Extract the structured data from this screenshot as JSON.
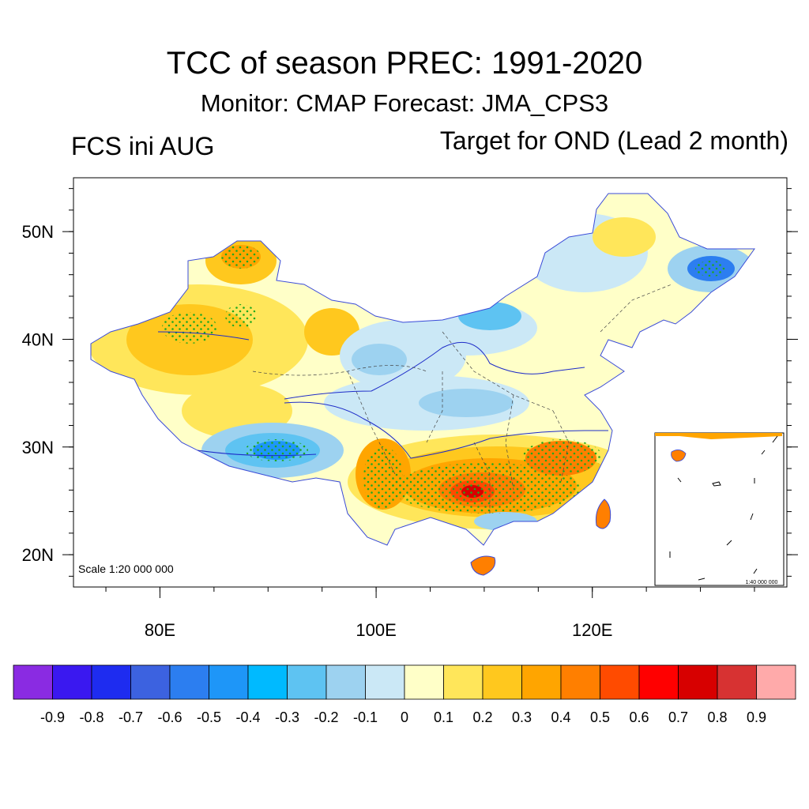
{
  "title": "TCC of season PREC: 1991-2020",
  "subtitle": "Monitor: CMAP   Forecast: JMA_CPS3",
  "left_label": "FCS ini AUG",
  "right_label": "Target for OND (Lead 2 month)",
  "map": {
    "lon_ticks": [
      {
        "value": 80,
        "label": "80E"
      },
      {
        "value": 100,
        "label": "100E"
      },
      {
        "value": 120,
        "label": "120E"
      }
    ],
    "lat_ticks": [
      {
        "value": 50,
        "label": "50N"
      },
      {
        "value": 40,
        "label": "40N"
      },
      {
        "value": 30,
        "label": "30N"
      },
      {
        "value": 20,
        "label": "20N"
      }
    ],
    "lon_range": [
      72,
      138
    ],
    "lat_range": [
      17,
      55
    ],
    "scale_text": "Scale 1:20 000 000",
    "inset_scale_text": "1:40 000 000",
    "significance_marker": "green dots"
  },
  "colorbar": {
    "labels": [
      "-0.9",
      "-0.8",
      "-0.7",
      "-0.6",
      "-0.5",
      "-0.4",
      "-0.3",
      "-0.2",
      "-0.1",
      "0",
      "0.1",
      "0.2",
      "0.3",
      "0.4",
      "0.5",
      "0.6",
      "0.7",
      "0.8",
      "0.9"
    ],
    "colors": [
      "#8a2be2",
      "#3a18f0",
      "#1e2cf0",
      "#3c62e0",
      "#2c7ef0",
      "#1e96f8",
      "#00baff",
      "#5ec3f2",
      "#9dd2f0",
      "#cbe8f6",
      "#ffffc8",
      "#ffe65a",
      "#ffc81e",
      "#ffa500",
      "#ff7f00",
      "#ff4b00",
      "#ff0000",
      "#d70000",
      "#d73232",
      "#ffaaaa"
    ]
  }
}
